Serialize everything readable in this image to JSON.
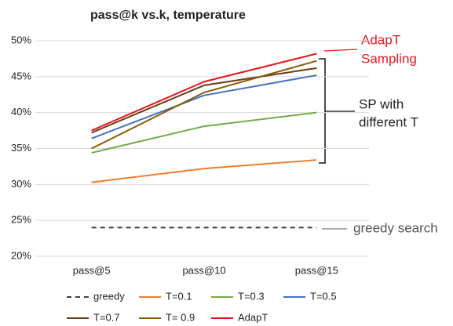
{
  "chart_data": {
    "type": "line",
    "title": "pass@k vs.k, temperature",
    "categories": [
      "pass@5",
      "pass@10",
      "pass@15"
    ],
    "series": [
      {
        "name": "greedy",
        "color": "#404040",
        "dashed": true,
        "values": [
          24.0,
          24.0,
          24.0
        ]
      },
      {
        "name": "T=0.1",
        "color": "#ed7d31",
        "values": [
          30.3,
          32.2,
          33.4
        ]
      },
      {
        "name": "T=0.3",
        "color": "#70ad47",
        "values": [
          34.4,
          38.1,
          40.0
        ]
      },
      {
        "name": "T=0.5",
        "color": "#4472c4",
        "values": [
          36.4,
          42.4,
          45.2
        ]
      },
      {
        "name": "T=0.7",
        "color": "#6b3a16",
        "values": [
          37.2,
          43.8,
          46.2
        ]
      },
      {
        "name": "T= 0.9",
        "color": "#8a5c0a",
        "values": [
          35.0,
          42.8,
          47.2
        ]
      },
      {
        "name": "AdapT",
        "color": "#e8141c",
        "values": [
          37.5,
          44.3,
          48.2
        ]
      }
    ],
    "ylim": [
      20,
      50
    ],
    "yticks": [
      {
        "value": 20,
        "label": "20%"
      },
      {
        "value": 25,
        "label": "25%"
      },
      {
        "value": 30,
        "label": "30%"
      },
      {
        "value": 35,
        "label": "35%"
      },
      {
        "value": 40,
        "label": "40%"
      },
      {
        "value": 45,
        "label": "45%"
      },
      {
        "value": 50,
        "label": "50%"
      }
    ],
    "grid": true,
    "legend": "bottom",
    "annotations": [
      "AdapT",
      "Sampling",
      "SP with",
      "different T",
      "greedy search"
    ]
  }
}
